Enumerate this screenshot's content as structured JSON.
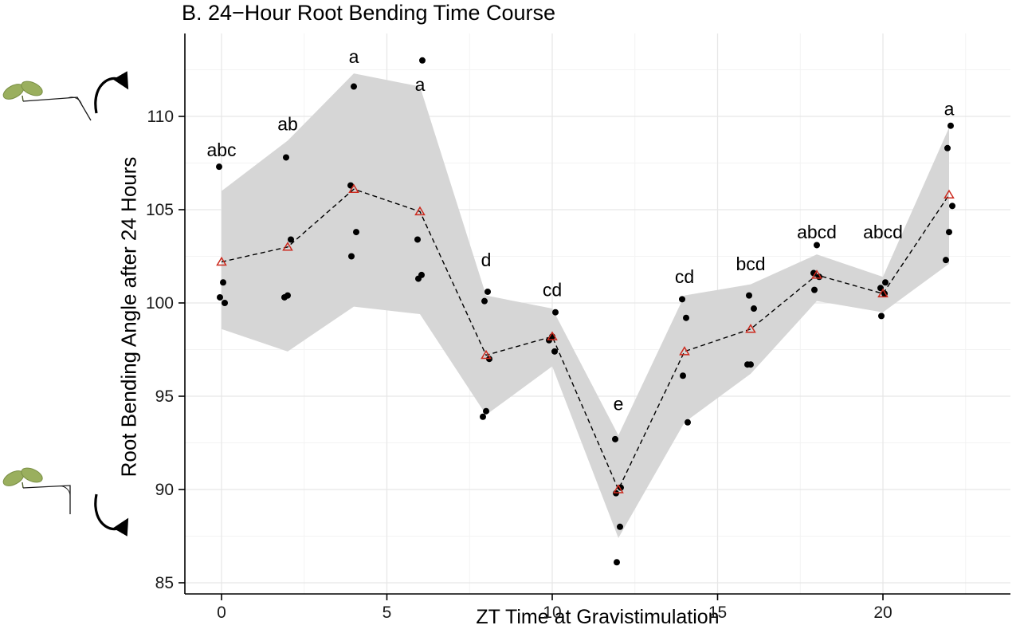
{
  "figure": {
    "title": "B. 24−Hour Root Bending Time Course",
    "xlabel": "ZT Time at Gravistimulation",
    "ylabel": "Root Bending Angle after 24 Hours"
  },
  "chart_data": {
    "type": "scatter",
    "title": "B. 24−Hour Root Bending Time Course",
    "xlabel": "ZT Time at Gravistimulation",
    "ylabel": "Root Bending Angle after 24 Hours",
    "x_ticks": [
      0,
      5,
      10,
      15,
      20
    ],
    "y_ticks": [
      85,
      90,
      95,
      100,
      105,
      110
    ],
    "x_minor_ticks": [
      2.5,
      7.5,
      12.5,
      17.5,
      22.5
    ],
    "y_minor_ticks": [
      87.5,
      92.5,
      97.5,
      102.5,
      107.5,
      112.5
    ],
    "xlim": [
      -1.1,
      23.8
    ],
    "ylim": [
      84.4,
      114.4
    ],
    "grid": true,
    "legend": "none",
    "colors": {
      "ribbon": "#d6d6d6",
      "point": "#000000",
      "mean_marker": "#cc2a1e",
      "mean_line": "#000000",
      "grid_major": "#e7e7e7",
      "grid_minor": "#f3f3f3",
      "axis": "#000000",
      "leaf": "#9aaf5e"
    },
    "groups": [
      {
        "zt": 0,
        "letter": "abc",
        "letter_y": 108.2,
        "mean": 102.2,
        "ribbon_low": 98.6,
        "ribbon_high": 106.0,
        "points": [
          107.3,
          101.1,
          100.3,
          100.0
        ]
      },
      {
        "zt": 2,
        "letter": "ab",
        "letter_y": 109.6,
        "mean": 103.0,
        "ribbon_low": 97.4,
        "ribbon_high": 108.7,
        "points": [
          107.8,
          103.4,
          100.4,
          100.3
        ]
      },
      {
        "zt": 4,
        "letter": "a",
        "letter_y": 113.2,
        "mean": 106.1,
        "ribbon_low": 99.8,
        "ribbon_high": 112.3,
        "points": [
          111.6,
          106.3,
          103.8,
          102.5
        ]
      },
      {
        "zt": 6,
        "letter": "a",
        "letter_y": 111.7,
        "mean": 104.9,
        "ribbon_low": 99.4,
        "ribbon_high": 111.6,
        "points": [
          113.0,
          103.4,
          101.5,
          101.3
        ]
      },
      {
        "zt": 8,
        "letter": "d",
        "letter_y": 102.3,
        "mean": 97.2,
        "ribbon_low": 94.0,
        "ribbon_high": 100.4,
        "points": [
          100.6,
          100.1,
          97.0,
          94.2,
          93.9
        ]
      },
      {
        "zt": 10,
        "letter": "cd",
        "letter_y": 100.7,
        "mean": 98.2,
        "ribbon_low": 96.6,
        "ribbon_high": 99.7,
        "points": [
          99.5,
          98.2,
          98.0,
          97.4
        ]
      },
      {
        "zt": 12,
        "letter": "e",
        "letter_y": 94.6,
        "mean": 90.0,
        "ribbon_low": 87.4,
        "ribbon_high": 92.9,
        "points": [
          92.7,
          90.1,
          89.8,
          88.0,
          86.1
        ]
      },
      {
        "zt": 14,
        "letter": "cd",
        "letter_y": 101.4,
        "mean": 97.4,
        "ribbon_low": 93.6,
        "ribbon_high": 100.4,
        "points": [
          100.2,
          99.2,
          96.1,
          93.6
        ]
      },
      {
        "zt": 16,
        "letter": "bcd",
        "letter_y": 102.1,
        "mean": 98.6,
        "ribbon_low": 96.2,
        "ribbon_high": 101.0,
        "points": [
          100.4,
          99.7,
          96.7,
          96.7
        ]
      },
      {
        "zt": 18,
        "letter": "abcd",
        "letter_y": 103.8,
        "mean": 101.5,
        "ribbon_low": 100.1,
        "ribbon_high": 102.6,
        "points": [
          103.1,
          101.6,
          101.4,
          100.7
        ]
      },
      {
        "zt": 20,
        "letter": "abcd",
        "letter_y": 103.8,
        "mean": 100.5,
        "ribbon_low": 99.5,
        "ribbon_high": 101.4,
        "points": [
          101.1,
          100.8,
          100.5,
          99.3
        ]
      },
      {
        "zt": 22,
        "letter": "a",
        "letter_y": 110.4,
        "mean": 105.8,
        "ribbon_low": 102.1,
        "ribbon_high": 109.4,
        "points": [
          109.5,
          108.3,
          105.2,
          103.8,
          102.3
        ]
      }
    ]
  }
}
